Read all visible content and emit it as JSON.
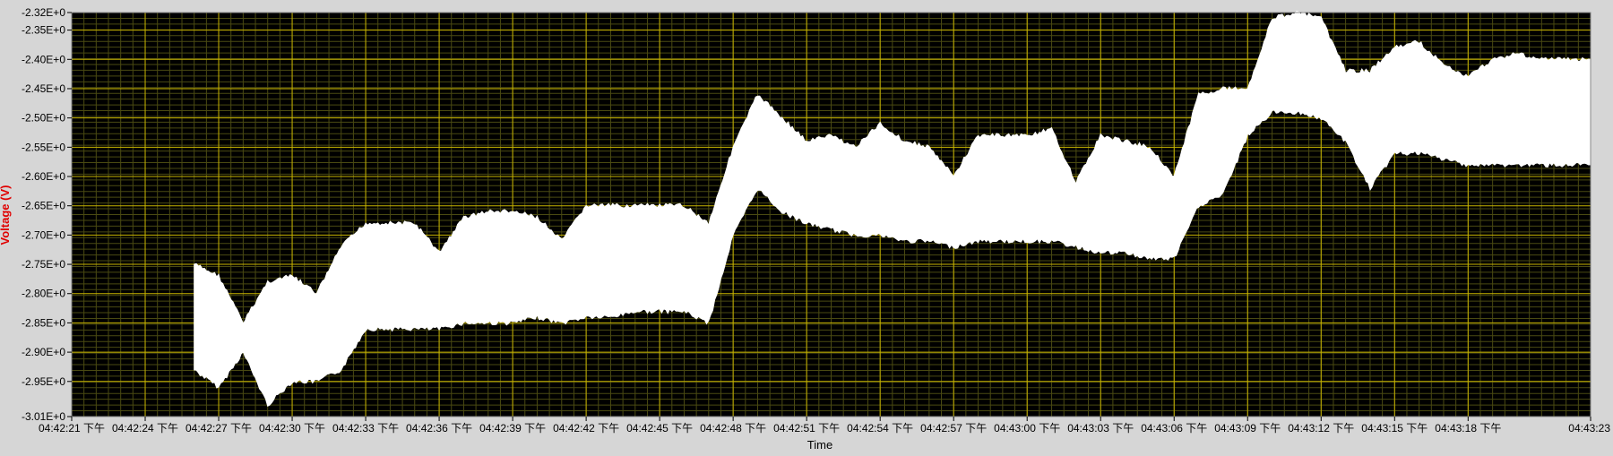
{
  "chart_data": {
    "type": "area",
    "title": "",
    "xlabel": "Time",
    "ylabel": "Voltage (V)",
    "ylim": [
      -3.01,
      -2.32
    ],
    "xlim": [
      "04:42:21",
      "04:43:23"
    ],
    "grid": true,
    "legend": "none",
    "colors": {
      "plot_bg": "#000000",
      "major_grid": "#c8b400",
      "minor_grid": "#4a4a12",
      "trace": "#ffffff",
      "ylabel": "#e00000",
      "frame": "#d6d6d6"
    },
    "y_ticks": [
      "-2.32E+0",
      "-2.35E+0",
      "-2.40E+0",
      "-2.45E+0",
      "-2.50E+0",
      "-2.55E+0",
      "-2.60E+0",
      "-2.65E+0",
      "-2.70E+0",
      "-2.75E+0",
      "-2.80E+0",
      "-2.85E+0",
      "-2.90E+0",
      "-2.95E+0",
      "-3.01E+0"
    ],
    "x_ticks": [
      "04:42:21 下午",
      "04:42:24 下午",
      "04:42:27 下午",
      "04:42:30 下午",
      "04:42:33 下午",
      "04:42:36 下午",
      "04:42:39 下午",
      "04:42:42 下午",
      "04:42:45 下午",
      "04:42:48 下午",
      "04:42:51 下午",
      "04:42:54 下午",
      "04:42:57 下午",
      "04:43:00 下午",
      "04:43:03 下午",
      "04:43:06 下午",
      "04:43:09 下午",
      "04:43:12 下午",
      "04:43:15 下午",
      "04:43:18 下午",
      "04:43:23"
    ],
    "series": [
      {
        "x": [
          "04:42:26",
          "04:42:27",
          "04:42:28",
          "04:42:29",
          "04:42:30",
          "04:42:31",
          "04:42:32",
          "04:42:33",
          "04:42:34",
          "04:42:35",
          "04:42:36",
          "04:42:37",
          "04:42:38",
          "04:42:39",
          "04:42:40",
          "04:42:41",
          "04:42:42",
          "04:42:43",
          "04:42:44",
          "04:42:45",
          "04:42:46",
          "04:42:47",
          "04:42:48",
          "04:42:49",
          "04:42:50",
          "04:42:51",
          "04:42:52",
          "04:42:53",
          "04:42:54",
          "04:42:55",
          "04:42:56",
          "04:42:57",
          "04:42:58",
          "04:42:59",
          "04:43:00",
          "04:43:01",
          "04:43:02",
          "04:43:03",
          "04:43:04",
          "04:43:05",
          "04:43:06",
          "04:43:07",
          "04:43:08",
          "04:43:09",
          "04:43:10",
          "04:43:11",
          "04:43:12",
          "04:43:13",
          "04:43:14",
          "04:43:15",
          "04:43:16",
          "04:43:17",
          "04:43:18",
          "04:43:19",
          "04:43:20",
          "04:43:21",
          "04:43:22",
          "04:43:23"
        ],
        "y_max": [
          -2.75,
          -2.77,
          -2.85,
          -2.78,
          -2.77,
          -2.8,
          -2.72,
          -2.68,
          -2.68,
          -2.68,
          -2.73,
          -2.67,
          -2.66,
          -2.66,
          -2.67,
          -2.71,
          -2.65,
          -2.65,
          -2.65,
          -2.65,
          -2.65,
          -2.68,
          -2.55,
          -2.46,
          -2.5,
          -2.54,
          -2.53,
          -2.55,
          -2.51,
          -2.54,
          -2.55,
          -2.6,
          -2.53,
          -2.53,
          -2.53,
          -2.52,
          -2.61,
          -2.53,
          -2.54,
          -2.55,
          -2.6,
          -2.46,
          -2.45,
          -2.45,
          -2.33,
          -2.32,
          -2.33,
          -2.42,
          -2.42,
          -2.38,
          -2.37,
          -2.41,
          -2.43,
          -2.4,
          -2.39,
          -2.4,
          -2.4,
          -2.4
        ],
        "y_min": [
          -2.93,
          -2.96,
          -2.9,
          -2.99,
          -2.95,
          -2.95,
          -2.93,
          -2.86,
          -2.86,
          -2.86,
          -2.86,
          -2.85,
          -2.85,
          -2.85,
          -2.84,
          -2.85,
          -2.84,
          -2.84,
          -2.83,
          -2.83,
          -2.83,
          -2.85,
          -2.7,
          -2.62,
          -2.66,
          -2.68,
          -2.69,
          -2.7,
          -2.7,
          -2.71,
          -2.71,
          -2.72,
          -2.71,
          -2.71,
          -2.71,
          -2.71,
          -2.72,
          -2.73,
          -2.73,
          -2.74,
          -2.74,
          -2.65,
          -2.63,
          -2.53,
          -2.49,
          -2.49,
          -2.5,
          -2.54,
          -2.62,
          -2.56,
          -2.56,
          -2.57,
          -2.58,
          -2.58,
          -2.58,
          -2.58,
          -2.58,
          -2.58
        ]
      }
    ]
  }
}
